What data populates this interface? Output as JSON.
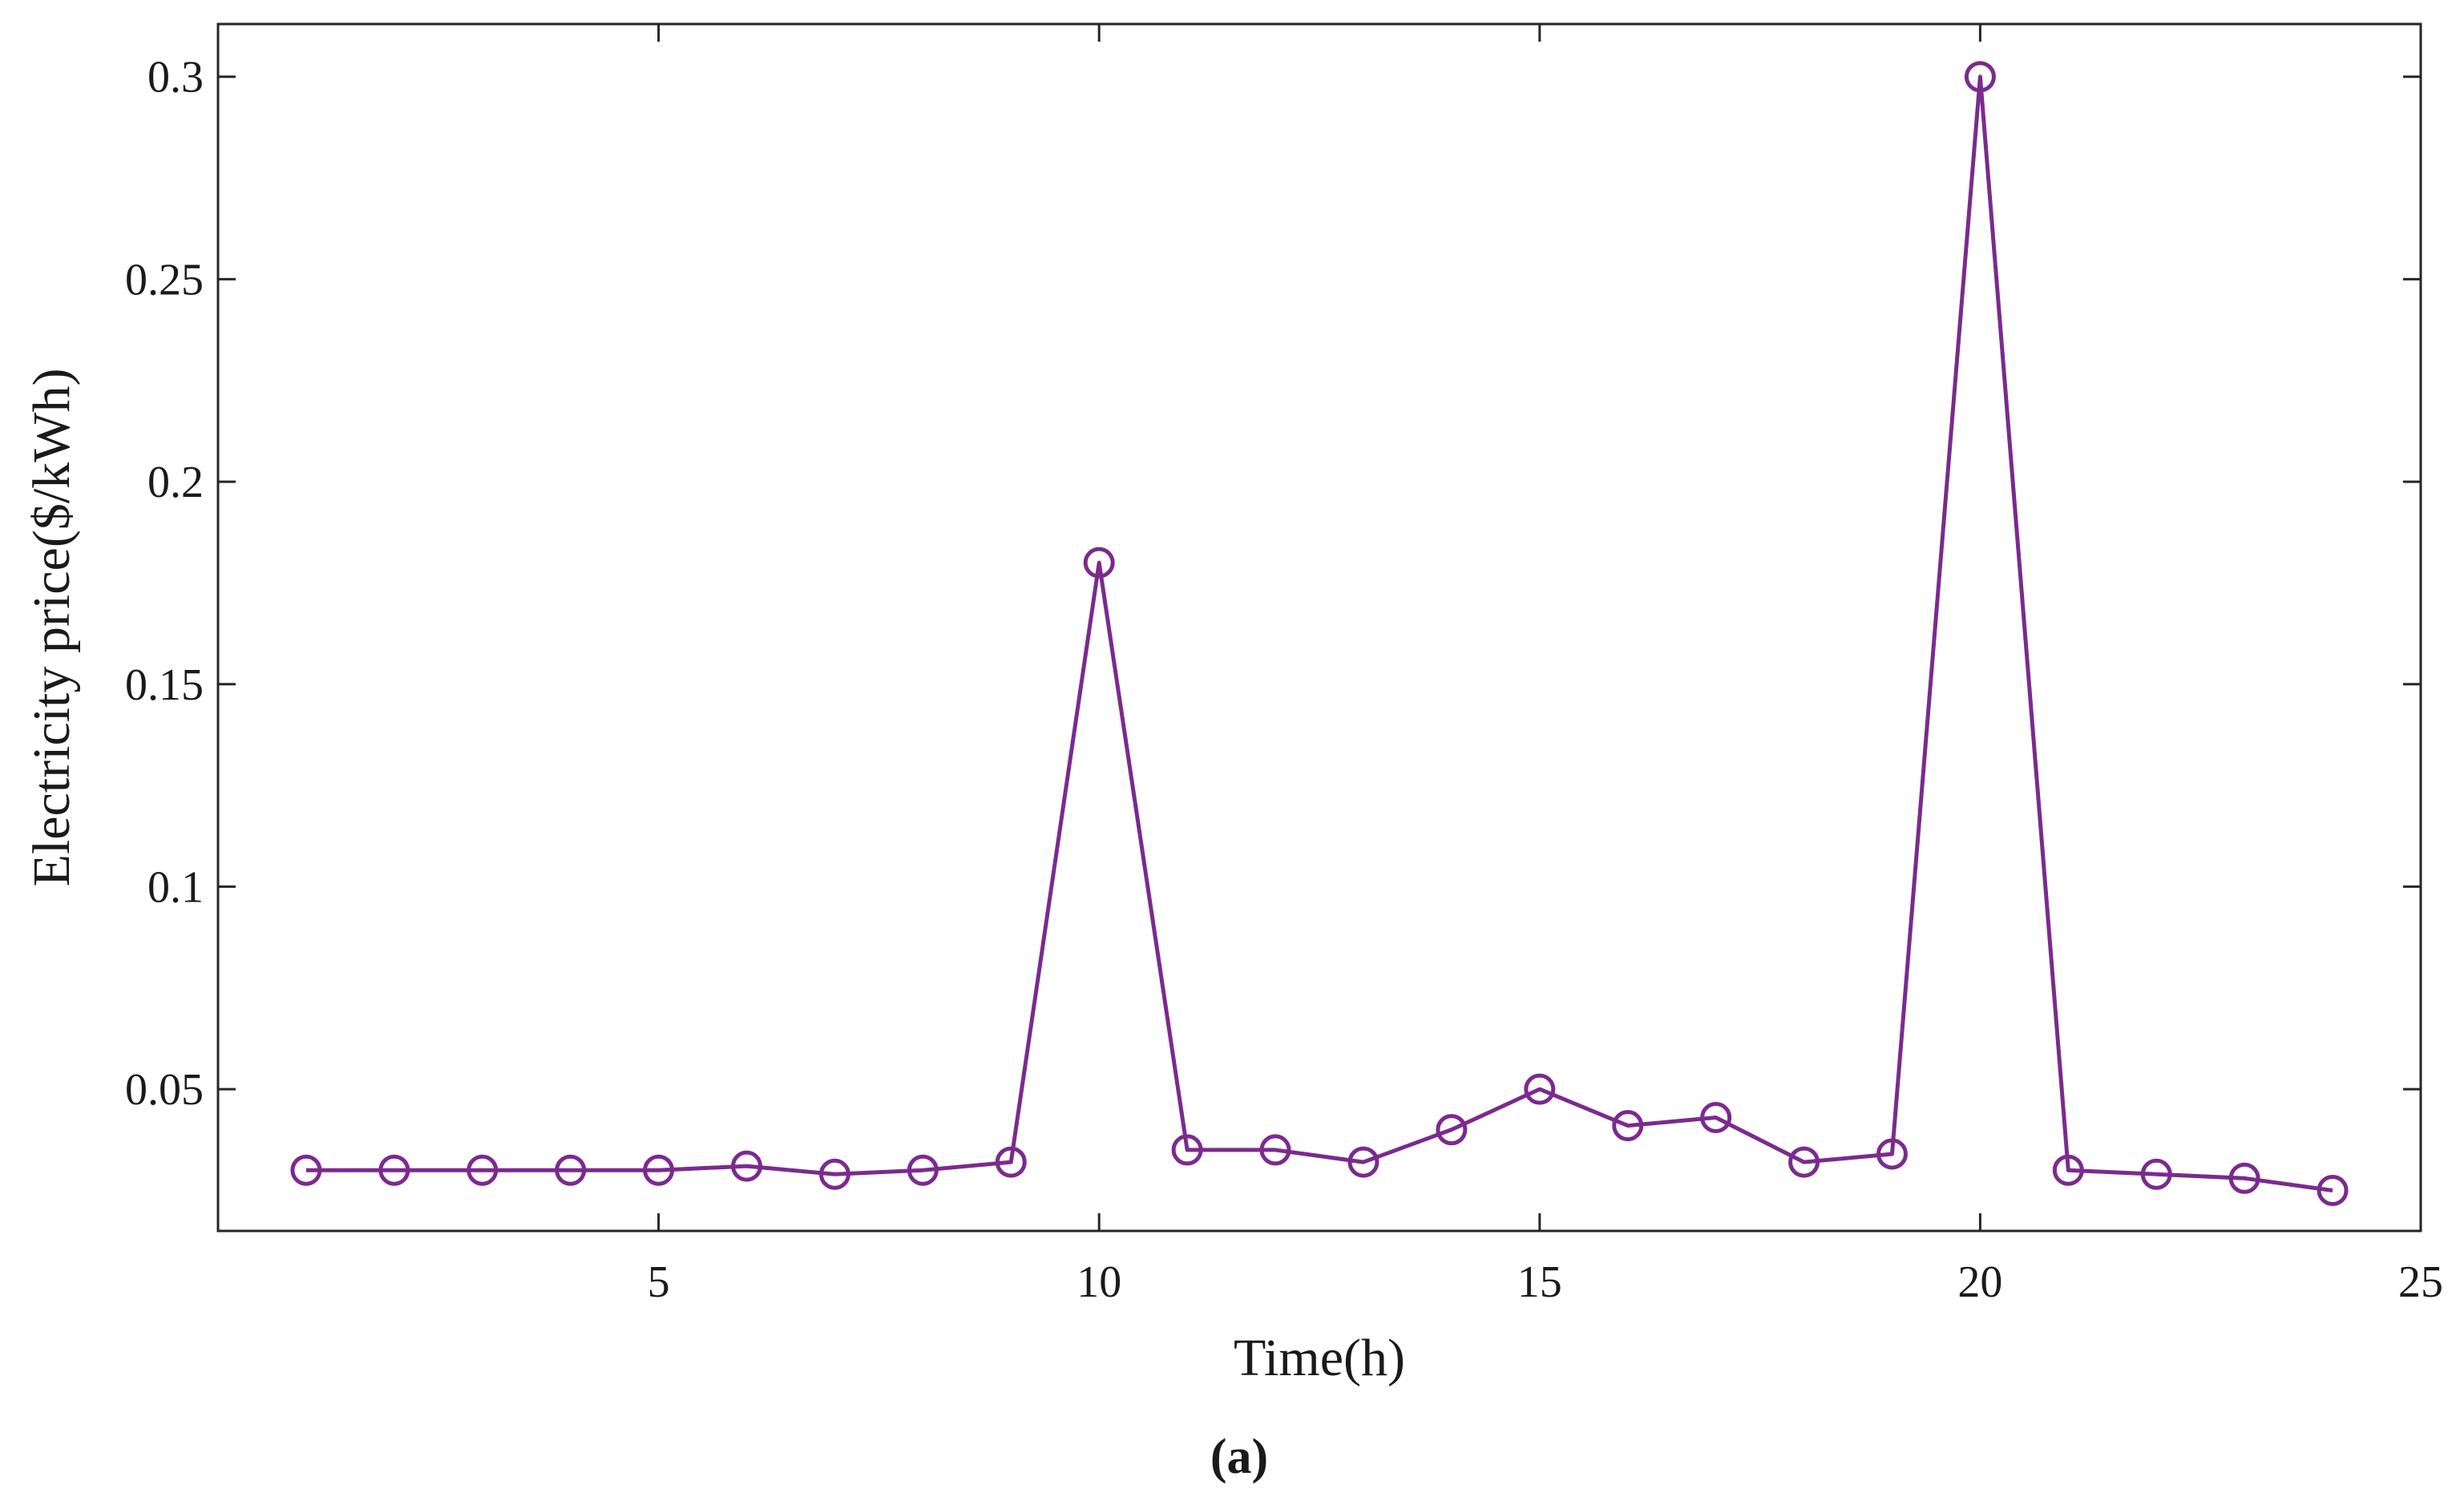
{
  "chart_data": {
    "type": "line",
    "title": "",
    "xlabel": "Time(h)",
    "ylabel": "Electricity price($/kWh)",
    "panel_label": "(a)",
    "xlim": [
      0,
      25
    ],
    "ylim": [
      0.015,
      0.313
    ],
    "x_ticks": [
      5,
      10,
      15,
      20,
      25
    ],
    "x_tick_labels": [
      "5",
      "10",
      "15",
      "20",
      "25"
    ],
    "y_ticks": [
      0.05,
      0.1,
      0.15,
      0.2,
      0.25,
      0.3
    ],
    "y_tick_labels": [
      "0.05",
      "0.1",
      "0.15",
      "0.2",
      "0.25",
      "0.3"
    ],
    "grid": false,
    "marker": "circle",
    "line_color": "#7b2a8e",
    "x": [
      1,
      2,
      3,
      4,
      5,
      6,
      7,
      8,
      9,
      10,
      11,
      12,
      13,
      14,
      15,
      16,
      17,
      18,
      19,
      20,
      21,
      22,
      23,
      24
    ],
    "series": [
      {
        "values": [
          0.03,
          0.03,
          0.03,
          0.03,
          0.03,
          0.031,
          0.029,
          0.03,
          0.032,
          0.18,
          0.035,
          0.035,
          0.032,
          0.04,
          0.05,
          0.041,
          0.043,
          0.032,
          0.034,
          0.3,
          0.03,
          0.029,
          0.028,
          0.025
        ]
      }
    ]
  }
}
